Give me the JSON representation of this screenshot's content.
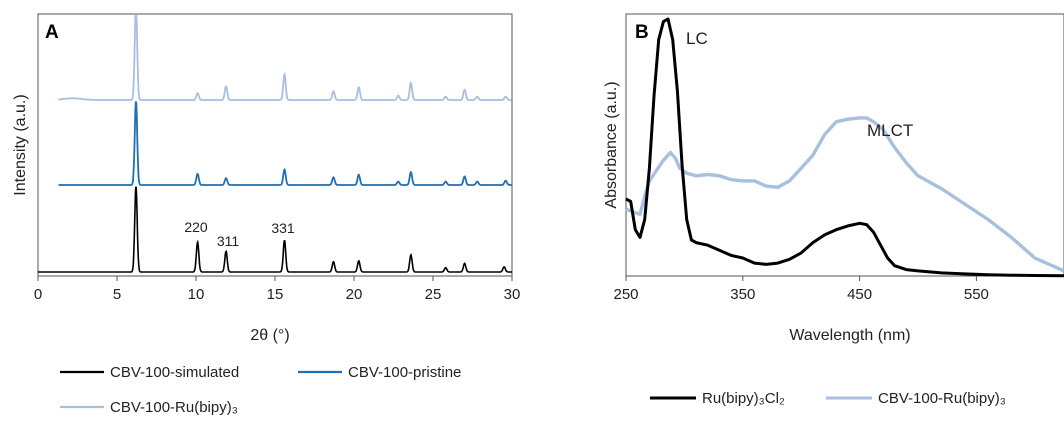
{
  "chart_data": [
    {
      "panel": "A",
      "type": "line",
      "xlabel": "2θ (°)",
      "ylabel": "Intensity (a.u.)",
      "xlim": [
        0,
        30
      ],
      "xticks": [
        "0",
        "5",
        "10",
        "15",
        "20",
        "25",
        "30"
      ],
      "yticks": false,
      "grid": false,
      "legend_position": "bottom",
      "annotations": [
        {
          "text": "220",
          "x": 10.1
        },
        {
          "text": "311",
          "x": 11.9
        },
        {
          "text": "331",
          "x": 15.6
        }
      ],
      "series": [
        {
          "name": "CBV-100-simulated",
          "color": "#000000",
          "x_range": [
            0,
            30
          ],
          "baseline": 0.0,
          "peaks": [
            [
              6.2,
              1.0
            ],
            [
              10.1,
              0.35
            ],
            [
              11.9,
              0.24
            ],
            [
              15.6,
              0.37
            ],
            [
              18.7,
              0.12
            ],
            [
              20.3,
              0.13
            ],
            [
              23.6,
              0.2
            ],
            [
              25.8,
              0.05
            ],
            [
              27.0,
              0.1
            ],
            [
              29.5,
              0.06
            ]
          ]
        },
        {
          "name": "CBV-100-pristine",
          "color": "#1f6fb5",
          "x_range": [
            1.3,
            30
          ],
          "baseline": 1.0,
          "peaks": [
            [
              6.2,
              0.98
            ],
            [
              10.1,
              0.13
            ],
            [
              11.9,
              0.08
            ],
            [
              15.6,
              0.18
            ],
            [
              18.7,
              0.09
            ],
            [
              20.3,
              0.12
            ],
            [
              22.8,
              0.04
            ],
            [
              23.6,
              0.15
            ],
            [
              25.8,
              0.04
            ],
            [
              27.0,
              0.1
            ],
            [
              27.8,
              0.04
            ],
            [
              29.6,
              0.05
            ]
          ]
        },
        {
          "name": "CBV-100-Ru(bipy)₃",
          "color": "#a9bfe0",
          "x_range": [
            1.3,
            30
          ],
          "baseline": 1.95,
          "peaks": [
            [
              6.2,
              1.1
            ],
            [
              10.1,
              0.08
            ],
            [
              11.9,
              0.16
            ],
            [
              15.6,
              0.3
            ],
            [
              18.7,
              0.1
            ],
            [
              20.3,
              0.15
            ],
            [
              22.8,
              0.05
            ],
            [
              23.6,
              0.2
            ],
            [
              25.8,
              0.04
            ],
            [
              27.0,
              0.12
            ],
            [
              27.8,
              0.04
            ],
            [
              29.6,
              0.04
            ]
          ]
        }
      ]
    },
    {
      "panel": "B",
      "type": "line",
      "xlabel": "Wavelength (nm)",
      "ylabel": "Absorbance (a.u.)",
      "xlim": [
        250,
        625
      ],
      "xticks": [
        "250",
        "350",
        "450",
        "550"
      ],
      "yticks": false,
      "grid": false,
      "legend_position": "bottom",
      "annotations": [
        {
          "text": "LC",
          "x": 287
        },
        {
          "text": "MLCT",
          "x": 452
        }
      ],
      "series": [
        {
          "name": "Ru(bipy)₃Cl₂",
          "color": "#000000",
          "x": [
            250,
            254,
            258,
            262,
            266,
            270,
            274,
            278,
            282,
            286,
            290,
            294,
            298,
            302,
            306,
            310,
            320,
            330,
            340,
            350,
            360,
            370,
            380,
            390,
            400,
            410,
            420,
            430,
            440,
            450,
            456,
            462,
            468,
            474,
            480,
            490,
            500,
            520,
            540,
            560,
            580,
            600,
            625
          ],
          "y": [
            0.3,
            0.29,
            0.18,
            0.15,
            0.22,
            0.42,
            0.7,
            0.92,
            0.99,
            1.0,
            0.92,
            0.72,
            0.43,
            0.22,
            0.14,
            0.13,
            0.12,
            0.1,
            0.08,
            0.07,
            0.05,
            0.045,
            0.05,
            0.065,
            0.09,
            0.13,
            0.16,
            0.18,
            0.195,
            0.205,
            0.2,
            0.17,
            0.12,
            0.07,
            0.04,
            0.025,
            0.02,
            0.012,
            0.008,
            0.005,
            0.003,
            0.002,
            0.001
          ]
        },
        {
          "name": "CBV-100-Ru(bipy)₃",
          "color": "#a9bfe0",
          "x": [
            250,
            256,
            262,
            266,
            270,
            276,
            282,
            288,
            292,
            296,
            302,
            310,
            320,
            330,
            340,
            350,
            360,
            370,
            380,
            390,
            400,
            410,
            420,
            430,
            440,
            450,
            456,
            462,
            470,
            480,
            490,
            500,
            520,
            540,
            560,
            580,
            600,
            625
          ],
          "y": [
            0.26,
            0.25,
            0.24,
            0.31,
            0.37,
            0.41,
            0.45,
            0.48,
            0.46,
            0.42,
            0.4,
            0.39,
            0.395,
            0.39,
            0.375,
            0.37,
            0.37,
            0.35,
            0.345,
            0.37,
            0.42,
            0.47,
            0.55,
            0.6,
            0.61,
            0.615,
            0.615,
            0.6,
            0.57,
            0.5,
            0.44,
            0.39,
            0.34,
            0.28,
            0.22,
            0.15,
            0.07,
            0.02
          ]
        }
      ]
    }
  ]
}
